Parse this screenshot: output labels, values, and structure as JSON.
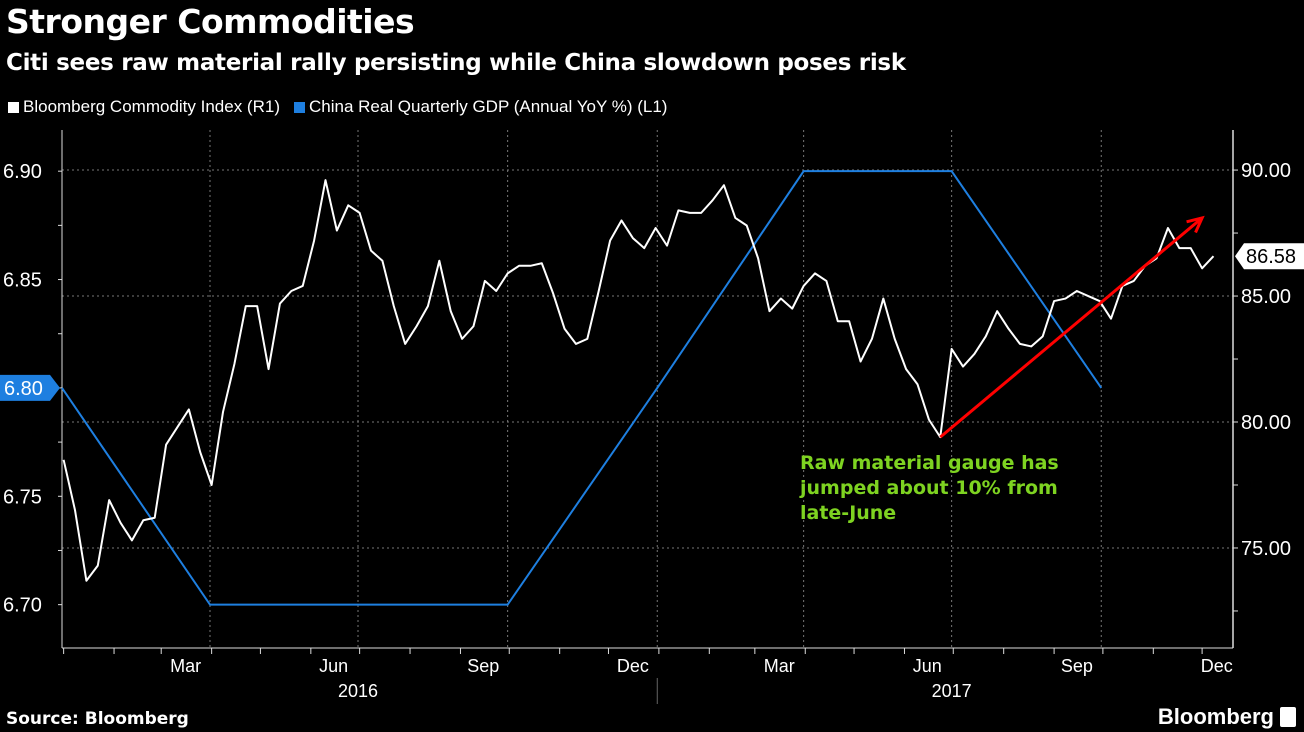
{
  "chart_data": {
    "type": "line",
    "title": "Stronger Commodities",
    "subtitle": "Citi sees raw material rally persisting while China slowdown poses risk",
    "source": "Source: Bloomberg",
    "brand": "Bloomberg",
    "colors": {
      "background": "#000000",
      "commodity": "#ffffff",
      "gdp": "#1e7fe0",
      "arrow": "#ff0000",
      "annotation": "#7ed321"
    },
    "grid": true,
    "legend_placement": "top-left",
    "x_range": [
      "2015-12-31",
      "2017-12-20"
    ],
    "x_ticks": [
      {
        "label": "Mar",
        "date": "2016-03-16"
      },
      {
        "label": "Jun",
        "date": "2016-06-15"
      },
      {
        "label": "Sep",
        "date": "2016-09-15"
      },
      {
        "label": "Dec",
        "date": "2016-12-16"
      },
      {
        "label": "Mar",
        "date": "2017-03-16"
      },
      {
        "label": "Jun",
        "date": "2017-06-15"
      },
      {
        "label": "Sep",
        "date": "2017-09-15"
      },
      {
        "label": "Dec",
        "date": "2017-12-10"
      }
    ],
    "year_labels": [
      {
        "label": "2016",
        "date": "2016-06-30"
      },
      {
        "label": "2017",
        "date": "2017-06-30"
      }
    ],
    "left_axis": {
      "range": [
        6.68,
        6.919
      ],
      "ticks": [
        "6.90",
        "6.85",
        "6.80",
        "6.75",
        "6.70"
      ],
      "highlight": "6.80"
    },
    "right_axis": {
      "range": [
        71.03,
        91.59
      ],
      "ticks": [
        "90.00",
        "85.00",
        "80.00",
        "75.00"
      ],
      "last_value": "86.58"
    },
    "series": [
      {
        "name": "Bloomberg Commodity Index (R1)",
        "axis": "right",
        "dates": [
          "2016-01-01",
          "2016-01-08",
          "2016-01-15",
          "2016-01-22",
          "2016-01-29",
          "2016-02-05",
          "2016-02-12",
          "2016-02-19",
          "2016-02-26",
          "2016-03-04",
          "2016-03-11",
          "2016-03-18",
          "2016-03-25",
          "2016-04-01",
          "2016-04-08",
          "2016-04-15",
          "2016-04-22",
          "2016-04-29",
          "2016-05-06",
          "2016-05-13",
          "2016-05-20",
          "2016-05-27",
          "2016-06-03",
          "2016-06-10",
          "2016-06-17",
          "2016-06-24",
          "2016-07-01",
          "2016-07-08",
          "2016-07-15",
          "2016-07-22",
          "2016-07-29",
          "2016-08-05",
          "2016-08-12",
          "2016-08-19",
          "2016-08-26",
          "2016-09-02",
          "2016-09-09",
          "2016-09-16",
          "2016-09-23",
          "2016-09-30",
          "2016-10-07",
          "2016-10-14",
          "2016-10-21",
          "2016-10-28",
          "2016-11-04",
          "2016-11-11",
          "2016-11-18",
          "2016-11-25",
          "2016-12-02",
          "2016-12-09",
          "2016-12-16",
          "2016-12-23",
          "2016-12-30",
          "2017-01-06",
          "2017-01-13",
          "2017-01-20",
          "2017-01-27",
          "2017-02-03",
          "2017-02-10",
          "2017-02-17",
          "2017-02-24",
          "2017-03-03",
          "2017-03-10",
          "2017-03-17",
          "2017-03-24",
          "2017-03-31",
          "2017-04-07",
          "2017-04-14",
          "2017-04-21",
          "2017-04-28",
          "2017-05-05",
          "2017-05-12",
          "2017-05-19",
          "2017-05-26",
          "2017-06-02",
          "2017-06-09",
          "2017-06-16",
          "2017-06-23",
          "2017-06-30",
          "2017-07-07",
          "2017-07-14",
          "2017-07-21",
          "2017-07-28",
          "2017-08-04",
          "2017-08-11",
          "2017-08-18",
          "2017-08-25",
          "2017-09-01",
          "2017-09-08",
          "2017-09-15",
          "2017-09-22",
          "2017-09-29",
          "2017-10-06",
          "2017-10-13",
          "2017-10-20",
          "2017-10-27",
          "2017-11-03",
          "2017-11-10",
          "2017-11-17",
          "2017-11-24",
          "2017-12-01",
          "2017-12-08"
        ],
        "values": [
          78.5,
          76.5,
          73.7,
          74.3,
          76.9,
          76.0,
          75.3,
          76.1,
          76.2,
          79.1,
          79.8,
          80.5,
          78.8,
          77.5,
          80.4,
          82.3,
          84.6,
          84.6,
          82.1,
          84.7,
          85.2,
          85.4,
          87.2,
          89.6,
          87.6,
          88.6,
          88.3,
          86.8,
          86.4,
          84.6,
          83.1,
          83.8,
          84.6,
          86.4,
          84.4,
          83.3,
          83.8,
          85.6,
          85.2,
          85.9,
          86.2,
          86.2,
          86.3,
          85.1,
          83.7,
          83.1,
          83.3,
          85.2,
          87.2,
          88.0,
          87.3,
          86.9,
          87.7,
          87.0,
          88.4,
          88.3,
          88.3,
          88.8,
          89.4,
          88.1,
          87.8,
          86.5,
          84.4,
          84.9,
          84.5,
          85.4,
          85.9,
          85.6,
          84.0,
          84.0,
          82.4,
          83.3,
          84.9,
          83.3,
          82.1,
          81.5,
          80.1,
          79.4,
          82.9,
          82.2,
          82.7,
          83.4,
          84.4,
          83.7,
          83.1,
          83.0,
          83.4,
          84.8,
          84.9,
          85.2,
          85.0,
          84.8,
          84.1,
          85.4,
          85.6,
          86.2,
          86.5,
          87.7,
          86.9,
          86.9,
          86.1,
          86.58
        ]
      },
      {
        "name": "China Real Quarterly GDP (Annual YoY %) (L1)",
        "axis": "left",
        "dates": [
          "2015-12-31",
          "2016-03-31",
          "2016-06-30",
          "2016-09-30",
          "2016-12-31",
          "2017-03-31",
          "2017-06-30",
          "2017-09-30"
        ],
        "values": [
          6.8,
          6.7,
          6.7,
          6.7,
          6.8,
          6.9,
          6.9,
          6.8
        ]
      }
    ],
    "annotation": {
      "lines": [
        "Raw material gauge has",
        "jumped about 10% from",
        "late-June"
      ],
      "arrow_from": {
        "date": "2017-06-23",
        "value": 79.4
      },
      "arrow_to": {
        "date": "2017-12-01",
        "value": 88.1
      }
    }
  }
}
